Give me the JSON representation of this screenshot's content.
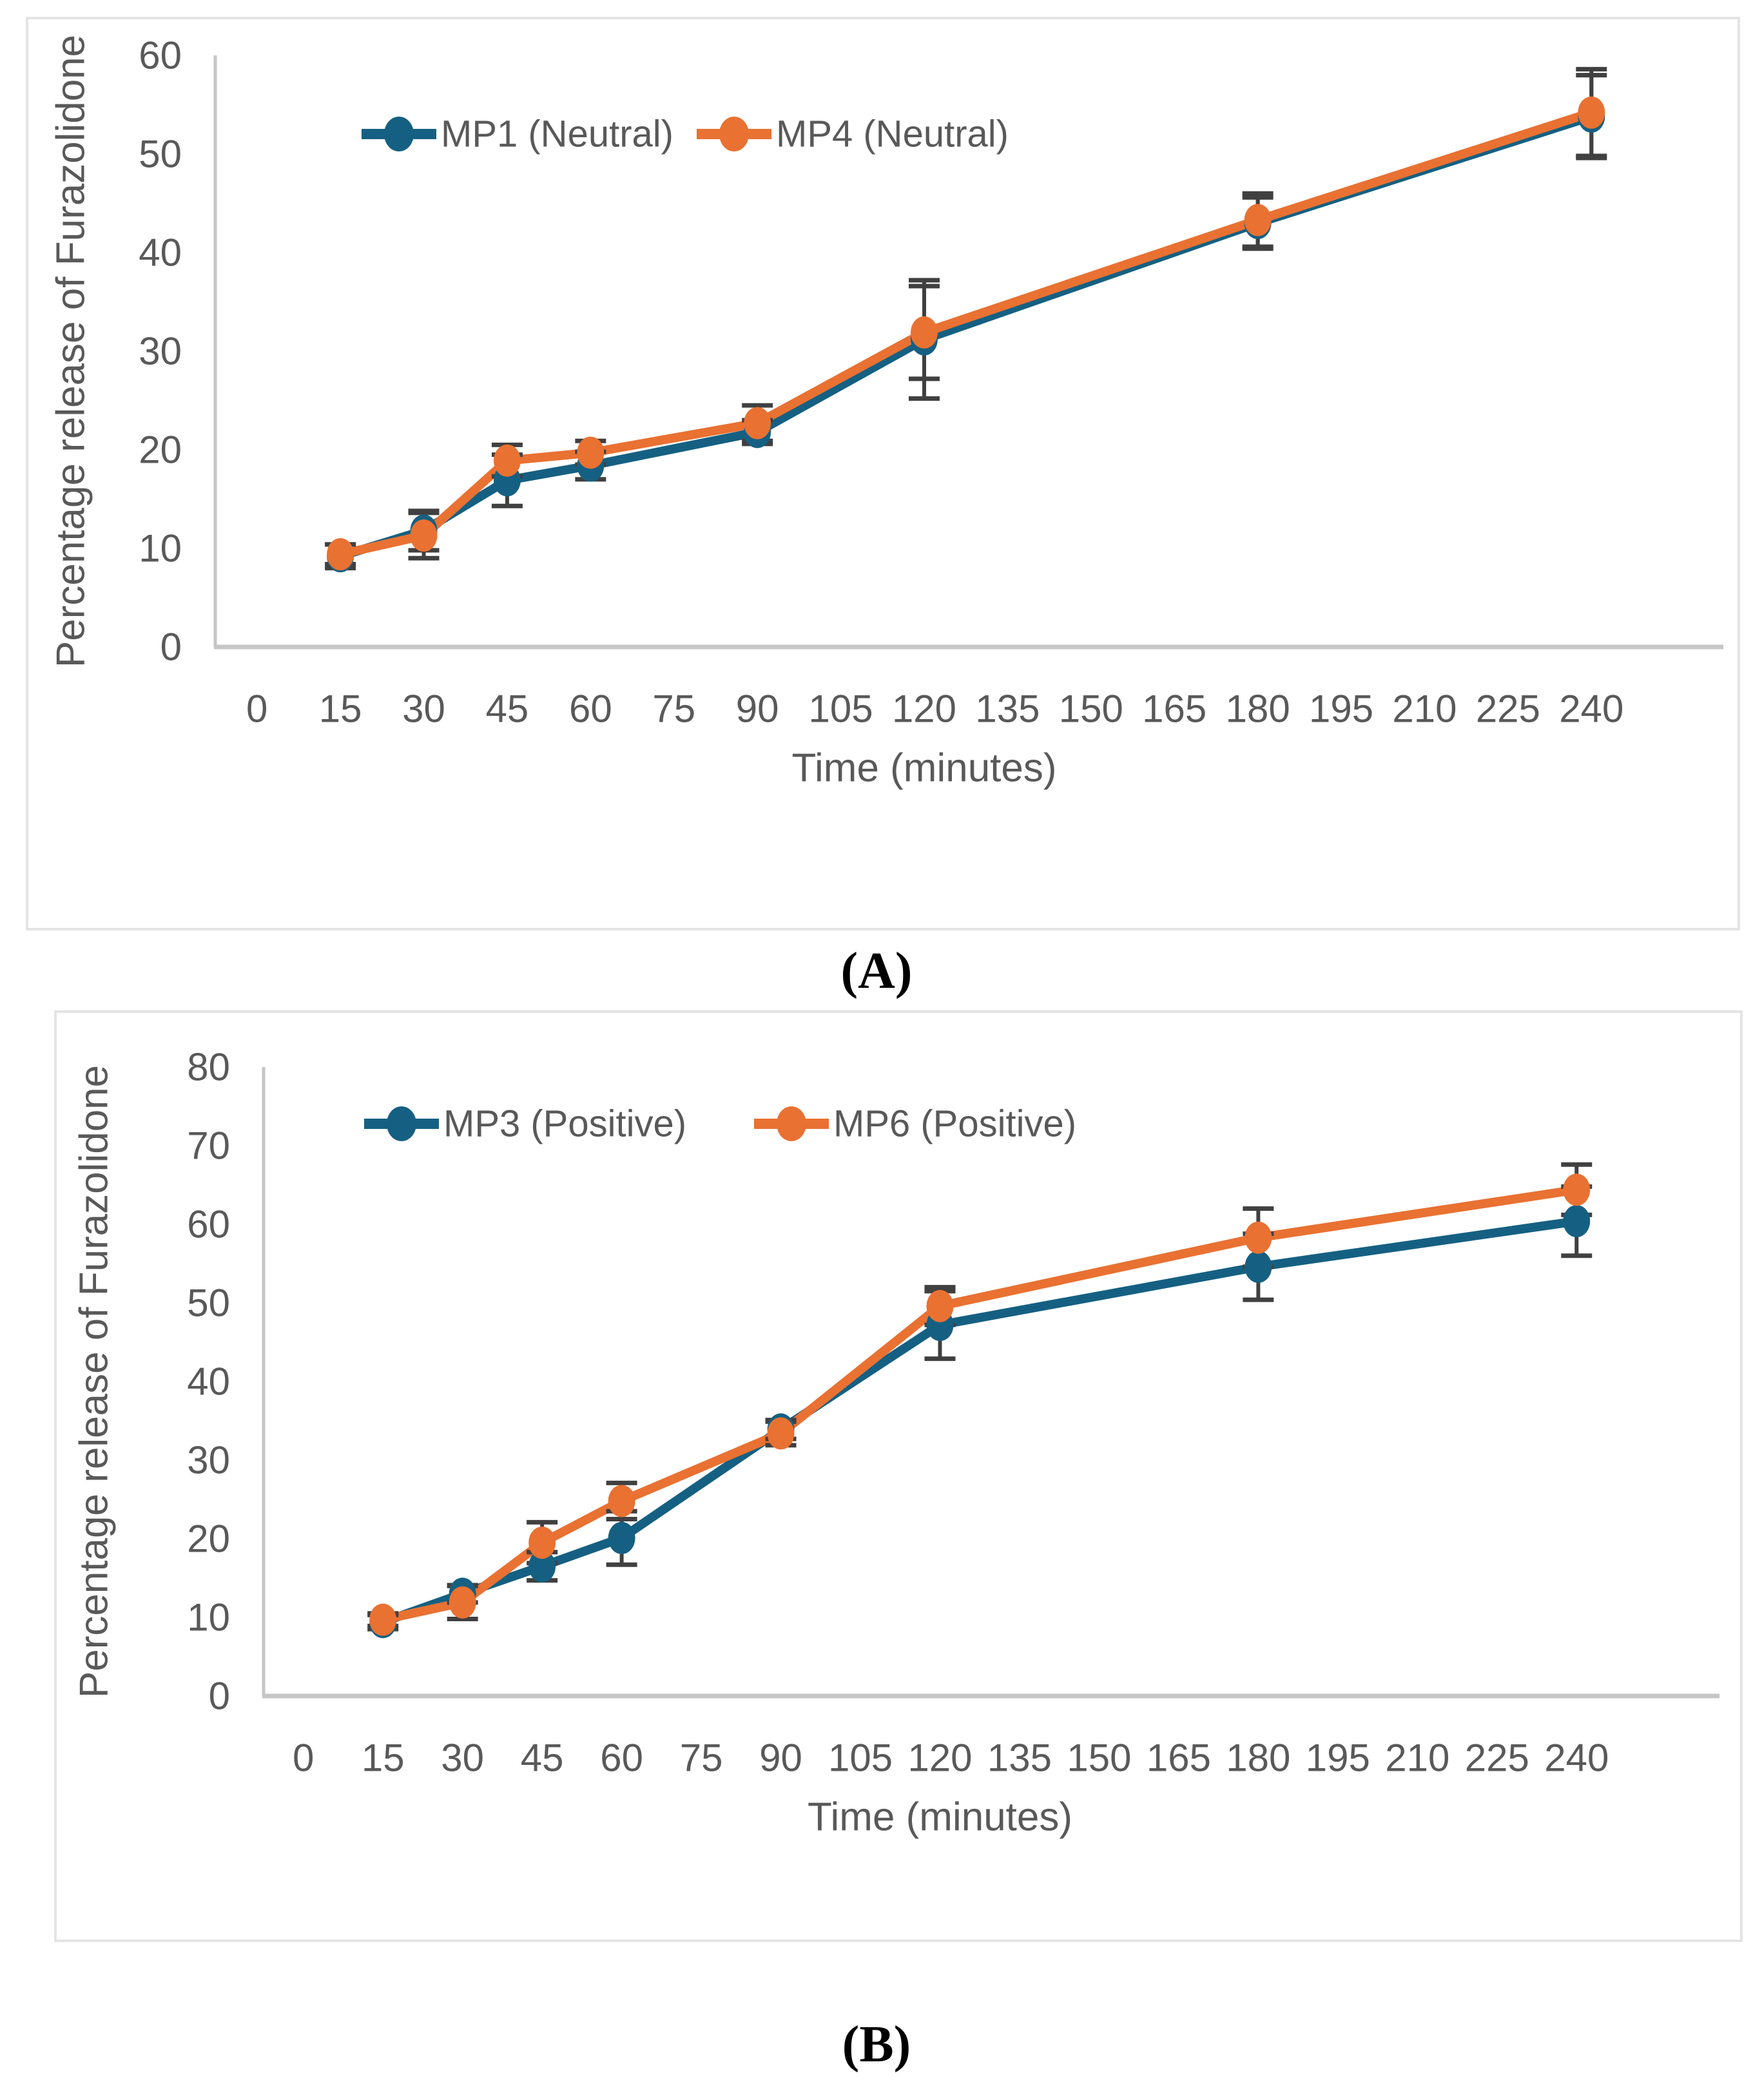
{
  "captions": {
    "panel_a": "(A)",
    "panel_b": "(B)"
  },
  "colors": {
    "series_teal": "#156082",
    "series_orange": "#E97132",
    "error_bar": "#404040",
    "tick_label": "#595959",
    "axis_title": "#595959",
    "legend_text": "#595959",
    "axis_line": "#c6c6c6",
    "panel_border": "#e4e4e4"
  },
  "chart_data": [
    {
      "id": "chart-a",
      "type": "line",
      "title": "",
      "xlabel": "Time (minutes)",
      "ylabel": "Percentage release of Furazolidone",
      "x_ticks": [
        0,
        15,
        30,
        45,
        60,
        75,
        90,
        105,
        120,
        135,
        150,
        165,
        180,
        195,
        210,
        225,
        240
      ],
      "y_ticks": [
        0,
        10,
        20,
        30,
        40,
        50,
        60
      ],
      "ylim": [
        0,
        60
      ],
      "grid": false,
      "legend_position": "top-center-inside",
      "error_bars": true,
      "marker": "circle",
      "series": [
        {
          "name": "MP1 (Neutral)",
          "color_key": "series_teal",
          "x": [
            15,
            30,
            45,
            60,
            90,
            120,
            180,
            240
          ],
          "y": [
            9.2,
            11.8,
            16.9,
            18.4,
            21.8,
            31.2,
            43.0,
            53.8
          ],
          "err": [
            1.2,
            2.0,
            2.6,
            1.4,
            1.2,
            6.0,
            2.6,
            4.2
          ]
        },
        {
          "name": "MP4 (Neutral)",
          "color_key": "series_orange",
          "x": [
            15,
            30,
            45,
            60,
            90,
            120,
            180,
            240
          ],
          "y": [
            9.4,
            11.3,
            18.9,
            19.7,
            22.7,
            31.9,
            43.3,
            54.2
          ],
          "err": [
            1.0,
            2.3,
            1.6,
            1.2,
            1.8,
            4.7,
            2.7,
            4.4
          ]
        }
      ]
    },
    {
      "id": "chart-b",
      "type": "line",
      "title": "",
      "xlabel": "Time (minutes)",
      "ylabel": "Percentage release of Furazolidone",
      "x_ticks": [
        0,
        15,
        30,
        45,
        60,
        75,
        90,
        105,
        120,
        135,
        150,
        165,
        180,
        195,
        210,
        225,
        240
      ],
      "y_ticks": [
        0,
        10,
        20,
        30,
        40,
        50,
        60,
        70,
        80
      ],
      "ylim": [
        0,
        80
      ],
      "grid": false,
      "legend_position": "top-center-inside",
      "error_bars": true,
      "marker": "circle",
      "series": [
        {
          "name": "MP3 (Positive)",
          "color_key": "series_teal",
          "x": [
            15,
            30,
            45,
            60,
            90,
            120,
            180,
            240
          ],
          "y": [
            9.4,
            13.0,
            16.5,
            20.1,
            33.9,
            47.2,
            54.6,
            60.4
          ],
          "err": [
            0.9,
            1.1,
            1.8,
            3.4,
            1.2,
            4.3,
            4.2,
            4.4
          ]
        },
        {
          "name": "MP6 (Positive)",
          "color_key": "series_orange",
          "x": [
            15,
            30,
            45,
            60,
            90,
            120,
            180,
            240
          ],
          "y": [
            9.7,
            11.9,
            19.5,
            24.8,
            33.4,
            49.6,
            58.3,
            64.4
          ],
          "err": [
            0.8,
            2.1,
            2.6,
            2.3,
            1.5,
            2.4,
            3.7,
            3.2
          ]
        }
      ]
    }
  ]
}
